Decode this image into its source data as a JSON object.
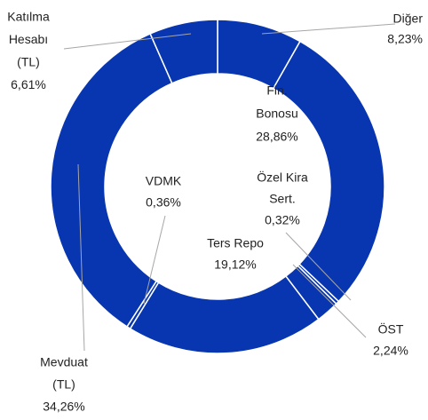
{
  "chart_data": {
    "type": "donut",
    "categories": [
      [
        "Diğer"
      ],
      [
        "Fin.",
        "Bonosu"
      ],
      [
        "Özel Kira",
        "Sert."
      ],
      [
        "ÖST"
      ],
      [
        "Ters Repo"
      ],
      [
        "VDMK"
      ],
      [
        "Mevduat",
        "(TL)"
      ],
      [
        "Katılma",
        "Hesabı",
        "(TL)"
      ]
    ],
    "values": [
      8.23,
      28.86,
      0.32,
      2.24,
      19.12,
      0.36,
      34.26,
      6.61
    ],
    "value_labels": [
      "8,23%",
      "28,86%",
      "0,32%",
      "2,24%",
      "19,12%",
      "0,36%",
      "34,26%",
      "6,61%"
    ],
    "color": "#0836b0"
  }
}
